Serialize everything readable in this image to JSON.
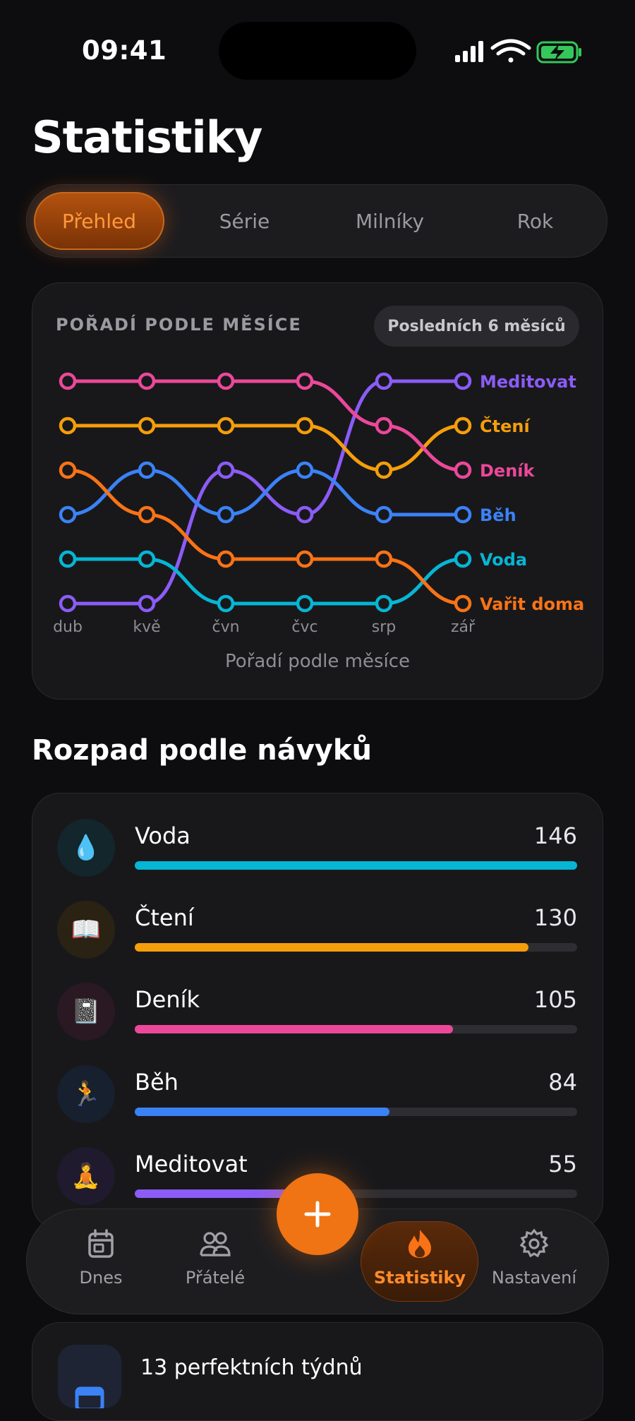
{
  "status_bar": {
    "time": "09:41"
  },
  "page": {
    "title": "Statistiky"
  },
  "tabs": [
    {
      "label": "Přehled",
      "active": true
    },
    {
      "label": "Série",
      "active": false
    },
    {
      "label": "Milníky",
      "active": false
    },
    {
      "label": "Rok",
      "active": false
    }
  ],
  "rank_chart": {
    "heading": "POŘADÍ PODLE MĚSÍCE",
    "range_pill": "Posledních 6 měsíců",
    "caption": "Pořadí podle měsíce"
  },
  "chart_data": {
    "type": "line",
    "title": "POŘADÍ PODLE MĚSÍCE",
    "xlabel": "Pořadí podle měsíce",
    "ylabel": "",
    "categories": [
      "dub",
      "kvě",
      "čvn",
      "čvc",
      "srp",
      "zář"
    ],
    "ylim": [
      1,
      6
    ],
    "y_inverted": true,
    "series": [
      {
        "name": "Meditovat",
        "color": "#8b5cf6",
        "values": [
          6,
          6,
          3,
          4,
          1,
          1
        ]
      },
      {
        "name": "Čtení",
        "color": "#f59e0b",
        "values": [
          2,
          2,
          2,
          2,
          3,
          2
        ]
      },
      {
        "name": "Deník",
        "color": "#ec4899",
        "values": [
          1,
          1,
          1,
          1,
          2,
          3
        ]
      },
      {
        "name": "Běh",
        "color": "#3b82f6",
        "values": [
          4,
          3,
          4,
          3,
          4,
          4
        ]
      },
      {
        "name": "Voda",
        "color": "#06b6d4",
        "values": [
          5,
          5,
          6,
          6,
          6,
          5
        ]
      },
      {
        "name": "Vařit doma",
        "color": "#f97316",
        "values": [
          3,
          4,
          5,
          5,
          5,
          6
        ]
      }
    ]
  },
  "breakdown": {
    "title": "Rozpad podle návyků",
    "max": 146,
    "habits": [
      {
        "name": "Voda",
        "count": "146",
        "value": 146,
        "icon": "droplet-icon",
        "emoji": "💧",
        "color": "#06b6d4",
        "bg": "#12262b"
      },
      {
        "name": "Čtení",
        "count": "130",
        "value": 130,
        "icon": "book-icon",
        "emoji": "📖",
        "color": "#f59e0b",
        "bg": "#2a2213"
      },
      {
        "name": "Deník",
        "count": "105",
        "value": 105,
        "icon": "notebook-icon",
        "emoji": "📓",
        "color": "#ec4899",
        "bg": "#2a1822"
      },
      {
        "name": "Běh",
        "count": "84",
        "value": 84,
        "icon": "runner-icon",
        "emoji": "🏃",
        "color": "#3b82f6",
        "bg": "#16202f"
      },
      {
        "name": "Meditovat",
        "count": "55",
        "value": 55,
        "icon": "meditation-icon",
        "emoji": "🧘",
        "color": "#8b5cf6",
        "bg": "#201a2e"
      }
    ]
  },
  "nav": {
    "items": [
      {
        "label": "Dnes",
        "icon": "calendar-icon"
      },
      {
        "label": "Přátelé",
        "icon": "people-icon"
      },
      {
        "label": "Statistiky",
        "icon": "flame-icon",
        "active": true
      },
      {
        "label": "Nastavení",
        "icon": "gear-icon"
      }
    ],
    "fab_icon": "plus-icon"
  },
  "peek": {
    "text": "13 perfektních týdnů"
  },
  "colors": {
    "accent": "#f07314",
    "background": "#0d0d0f",
    "card": "#18181b"
  }
}
